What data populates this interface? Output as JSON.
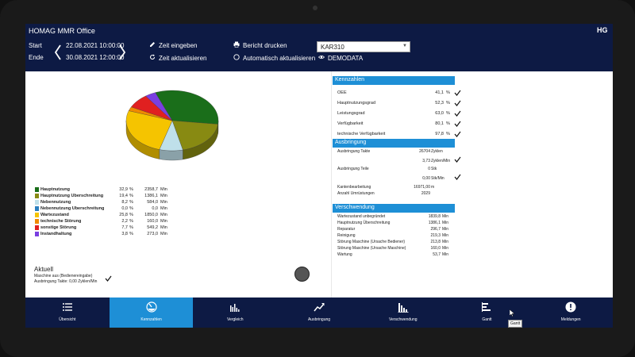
{
  "header": {
    "app_title": "HOMAG MMR Office",
    "logo_text": "HG",
    "start_label": "Start",
    "end_label": "Ende",
    "start_date": "22.08.2021 10:00:00",
    "end_date": "30.08.2021 12:00:00",
    "zeit_eingeben": "Zeit eingeben",
    "zeit_aktualisieren": "Zeit aktualisieren",
    "bericht_drucken": "Bericht drucken",
    "automatisch_aktualisieren": "Automatisch aktualisieren",
    "machine": "KAR310",
    "demodata": "DEMODATA"
  },
  "pie": {
    "items": [
      {
        "name": "Hauptnutzung",
        "pct": "32,9",
        "value": "2358,7",
        "unit": "Min",
        "color": "#1a6e1a",
        "share": 32.9
      },
      {
        "name": "Hauptnutzung Überschreitung",
        "pct": "19,4",
        "value": "1386,1",
        "unit": "Min",
        "color": "#888a12",
        "share": 19.4
      },
      {
        "name": "Nebennutzung",
        "pct": "8,2",
        "value": "584,0",
        "unit": "Min",
        "color": "#bfe0ea",
        "share": 8.2
      },
      {
        "name": "Nebennutzung Überschreitung",
        "pct": "0,0",
        "value": "0,0",
        "unit": "Min",
        "color": "#2a7fbf",
        "share": 0.0
      },
      {
        "name": "Wartezustand",
        "pct": "25,8",
        "value": "1850,0",
        "unit": "Min",
        "color": "#f5c400",
        "share": 25.8
      },
      {
        "name": "technische Störung",
        "pct": "2,2",
        "value": "160,0",
        "unit": "Min",
        "color": "#f08a00",
        "share": 2.2
      },
      {
        "name": "sonstige Störung",
        "pct": "7,7",
        "value": "549,2",
        "unit": "Min",
        "color": "#e02020",
        "share": 7.7
      },
      {
        "name": "Instandhaltung",
        "pct": "3,8",
        "value": "273,0",
        "unit": "Min",
        "color": "#7a3fe0",
        "share": 3.8
      }
    ],
    "pct_unit": "%"
  },
  "aktuell": {
    "title": "Aktuell",
    "line1": "Maschine aus (Bedienereingabe)",
    "line2": "Ausbringung Takte: 0,00 Zyklen/Min"
  },
  "kennzahlen": {
    "title": "Kennzahlen",
    "rows": [
      {
        "name": "OEE",
        "value": "41,1",
        "unit": "%"
      },
      {
        "name": "Hauptnutzungsgrad",
        "value": "52,3",
        "unit": "%"
      },
      {
        "name": "Leistungsgrad",
        "value": "63,0",
        "unit": "%"
      },
      {
        "name": "Verfügbarkeit",
        "value": "80,1",
        "unit": "%"
      },
      {
        "name": "technische Verfügbarkeit",
        "value": "97,8",
        "unit": "%"
      }
    ]
  },
  "ausbringung": {
    "title": "Ausbringung",
    "takte_label": "Ausbringung Takte",
    "takte_value": "26704",
    "takte_unit": "Zyklen",
    "takte_rate": "3,73",
    "takte_rate_unit": "Zyklen/Min",
    "teile_label": "Ausbringung Teile",
    "teile_value": "0",
    "teile_unit": "Stk",
    "teile_rate": "0,00",
    "teile_rate_unit": "Stk/Min",
    "kante_label": "Kantenbearbeitung",
    "kante_value": "16971,00",
    "kante_unit": "m",
    "umruest_label": "Anzahl Umrüstungen",
    "umruest_value": "2029"
  },
  "verschwendung": {
    "title": "Verschwendung",
    "rows": [
      {
        "name": "Wartezustand unbegründet",
        "value": "1839,8",
        "unit": "Min"
      },
      {
        "name": "Hauptnutzung Überschreitung",
        "value": "1386,1",
        "unit": "Min"
      },
      {
        "name": "Reparatur",
        "value": "296,7",
        "unit": "Min"
      },
      {
        "name": "Reinigung",
        "value": "219,3",
        "unit": "Min"
      },
      {
        "name": "Störung Maschine (Ursache Bediener)",
        "value": "213,8",
        "unit": "Min"
      },
      {
        "name": "Störung Maschine (Ursache Maschine)",
        "value": "160,0",
        "unit": "Min"
      },
      {
        "name": "Wartung",
        "value": "53,7",
        "unit": "Min"
      }
    ]
  },
  "nav": {
    "items": [
      {
        "label": "Übersicht",
        "icon": "list-icon"
      },
      {
        "label": "Kennzahlen",
        "icon": "gauge-icon"
      },
      {
        "label": "Vergleich",
        "icon": "compare-bars-icon"
      },
      {
        "label": "Ausbringung",
        "icon": "trend-up-icon"
      },
      {
        "label": "Verschwendung",
        "icon": "bar-chart-icon"
      },
      {
        "label": "Gantt",
        "icon": "gantt-icon"
      },
      {
        "label": "Meldungen",
        "icon": "alert-icon"
      }
    ],
    "active": "Kennzahlen",
    "tooltip": "Gantt"
  }
}
